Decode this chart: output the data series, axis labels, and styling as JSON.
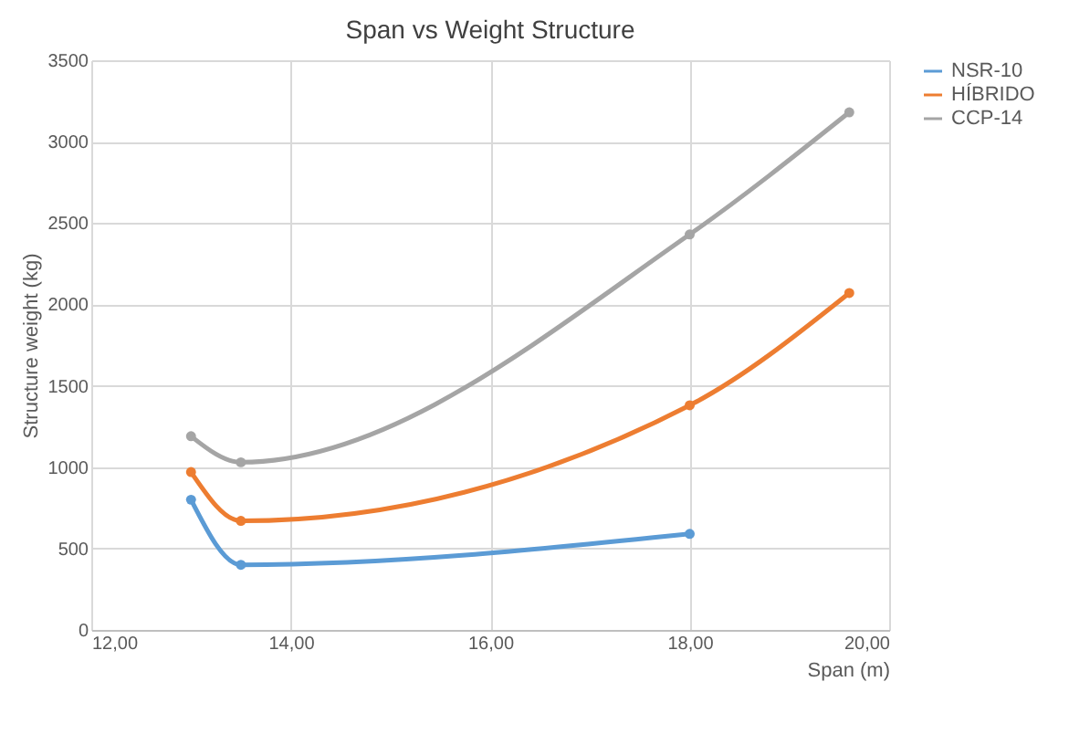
{
  "chart_data": {
    "type": "line",
    "title": "Span  vs  Weight Structure",
    "xlabel": "Span (m)",
    "ylabel": "Structure weight      (kg)",
    "xlim": [
      12,
      20
    ],
    "xticks": [
      {
        "value": 12,
        "label": "12,00"
      },
      {
        "value": 14,
        "label": "14,00"
      },
      {
        "value": 16,
        "label": "16,00"
      },
      {
        "value": 18,
        "label": "18,00"
      },
      {
        "value": 20,
        "label": "20,00"
      }
    ],
    "ylim": [
      0,
      3500
    ],
    "yticks": [
      0,
      500,
      1000,
      1500,
      2000,
      2500,
      3000,
      3500
    ],
    "grid": true,
    "legend": "right",
    "marker": "circle",
    "series": [
      {
        "name": "NSR-10",
        "color": "#5b9bd5",
        "x": [
          13,
          13.5,
          18
        ],
        "values": [
          800,
          400,
          590
        ]
      },
      {
        "name": "HÍBRIDO",
        "color": "#ed7d31",
        "x": [
          13,
          13.5,
          18,
          19.6
        ],
        "values": [
          970,
          670,
          1380,
          2070
        ]
      },
      {
        "name": "CCP-14",
        "color": "#a5a5a5",
        "x": [
          13,
          13.5,
          18,
          19.6
        ],
        "values": [
          1190,
          1030,
          2430,
          3180
        ]
      }
    ]
  }
}
